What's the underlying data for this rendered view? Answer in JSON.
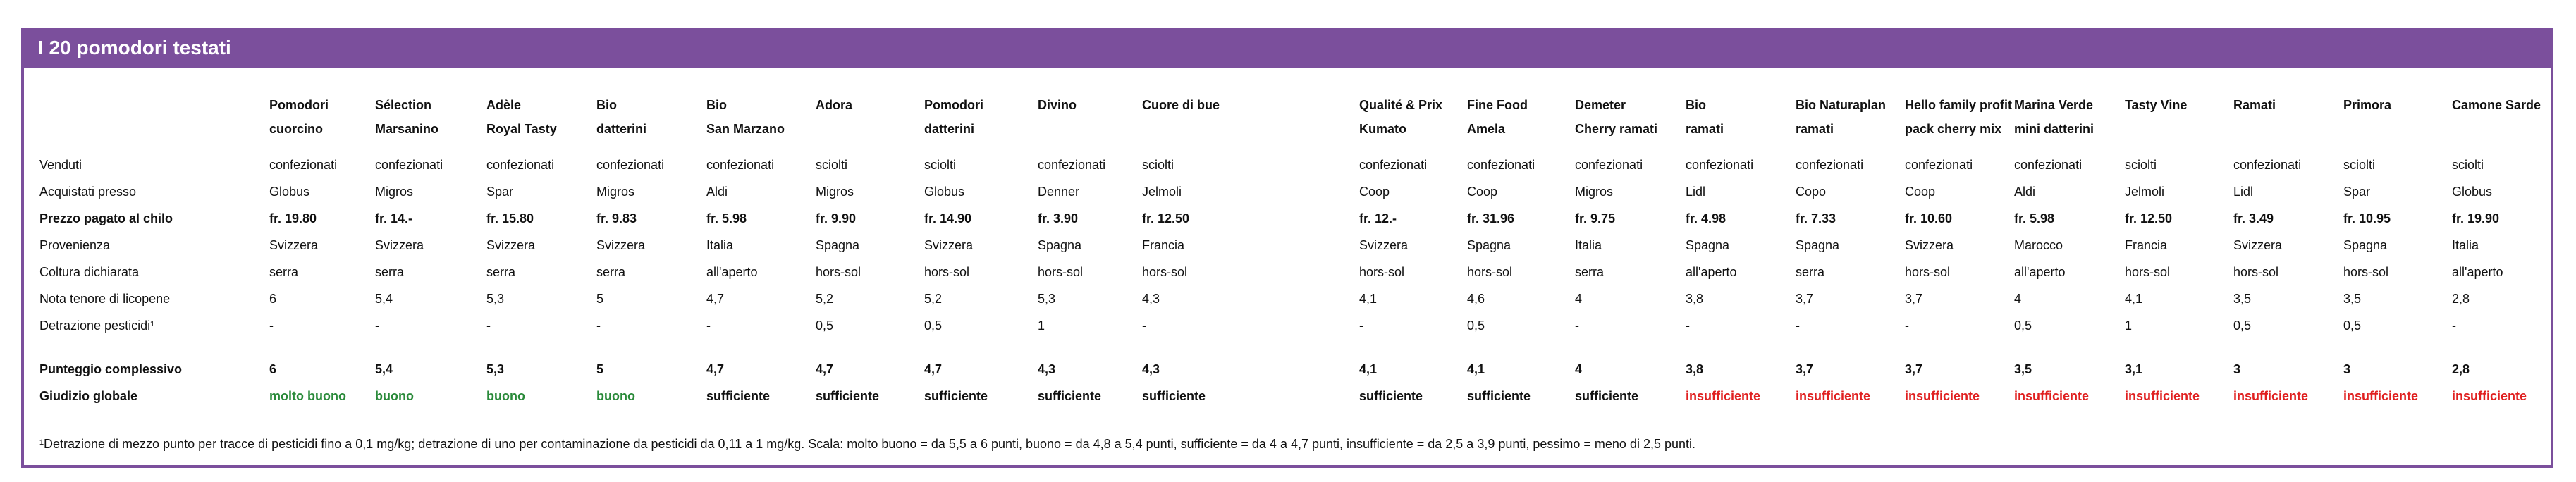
{
  "title": "I 20 pomodori testati",
  "colors": {
    "header_bg": "#7b4f9c",
    "green": "#2a8a3a",
    "red": "#e02020",
    "black": "#111111"
  },
  "columns": [
    {
      "line1": "Pomodori",
      "line2": "cuorcino"
    },
    {
      "line1": "Sélection",
      "line2": "Marsanino"
    },
    {
      "line1": "Adèle",
      "line2": "Royal Tasty"
    },
    {
      "line1": "Bio",
      "line2": "datterini"
    },
    {
      "line1": "Bio",
      "line2": "San Marzano"
    },
    {
      "line1": "Adora",
      "line2": ""
    },
    {
      "line1": "Pomodori",
      "line2": "datterini"
    },
    {
      "line1": "Divino",
      "line2": ""
    },
    {
      "line1": "Cuore di bue",
      "line2": ""
    },
    {
      "line1": "Qualité & Prix",
      "line2": "Kumato"
    },
    {
      "line1": "Fine Food",
      "line2": "Amela"
    },
    {
      "line1": "Demeter",
      "line2": "Cherry ramati"
    },
    {
      "line1": "Bio",
      "line2": "ramati"
    },
    {
      "line1": "Bio Naturaplan",
      "line2": "ramati"
    },
    {
      "line1": "Hello family profit",
      "line2": "pack cherry mix"
    },
    {
      "line1": "Marina Verde",
      "line2": "mini datterini"
    },
    {
      "line1": "Tasty Vine",
      "line2": ""
    },
    {
      "line1": "Ramati",
      "line2": ""
    },
    {
      "line1": "Primora",
      "line2": ""
    },
    {
      "line1": "Camone Sarde",
      "line2": ""
    }
  ],
  "rows": [
    {
      "label": "Venduti",
      "bold": false,
      "values": [
        "confezionati",
        "confezionati",
        "confezionati",
        "confezionati",
        "confezionati",
        "sciolti",
        "sciolti",
        "confezionati",
        "sciolti",
        "confezionati",
        "confezionati",
        "confezionati",
        "confezionati",
        "confezionati",
        "confezionati",
        "confezionati",
        "sciolti",
        "confezionati",
        "sciolti",
        "sciolti"
      ]
    },
    {
      "label": "Acquistati presso",
      "bold": false,
      "values": [
        "Globus",
        "Migros",
        "Spar",
        "Migros",
        "Aldi",
        "Migros",
        "Globus",
        "Denner",
        "Jelmoli",
        "Coop",
        "Coop",
        "Migros",
        "Lidl",
        "Copo",
        "Coop",
        "Aldi",
        "Jelmoli",
        "Lidl",
        "Spar",
        "Globus"
      ]
    },
    {
      "label": "Prezzo pagato al chilo",
      "bold": true,
      "values": [
        "fr. 19.80",
        "fr. 14.-",
        "fr. 15.80",
        "fr. 9.83",
        "fr. 5.98",
        "fr. 9.90",
        "fr. 14.90",
        "fr. 3.90",
        "fr. 12.50",
        "fr. 12.-",
        "fr. 31.96",
        "fr. 9.75",
        "fr. 4.98",
        "fr. 7.33",
        "fr. 10.60",
        "fr. 5.98",
        "fr. 12.50",
        "fr. 3.49",
        "fr. 10.95",
        "fr. 19.90"
      ]
    },
    {
      "label": "Provenienza",
      "bold": false,
      "values": [
        "Svizzera",
        "Svizzera",
        "Svizzera",
        "Svizzera",
        "Italia",
        "Spagna",
        "Svizzera",
        "Spagna",
        "Francia",
        "Svizzera",
        "Spagna",
        "Italia",
        "Spagna",
        "Spagna",
        "Svizzera",
        "Marocco",
        "Francia",
        "Svizzera",
        "Spagna",
        "Italia"
      ]
    },
    {
      "label": "Coltura dichiarata",
      "bold": false,
      "values": [
        "serra",
        "serra",
        "serra",
        "serra",
        "all'aperto",
        "hors-sol",
        "hors-sol",
        "hors-sol",
        "hors-sol",
        "hors-sol",
        "hors-sol",
        "serra",
        "all'aperto",
        "serra",
        "hors-sol",
        "all'aperto",
        "hors-sol",
        "hors-sol",
        "hors-sol",
        "all'aperto"
      ]
    },
    {
      "label": "Nota tenore di licopene",
      "bold": false,
      "values": [
        "6",
        "5,4",
        "5,3",
        "5",
        "4,7",
        "5,2",
        "5,2",
        "5,3",
        "4,3",
        "4,1",
        "4,6",
        "4",
        "3,8",
        "3,7",
        "3,7",
        "4",
        "4,1",
        "3,5",
        "3,5",
        "2,8"
      ]
    },
    {
      "label": "Detrazione pesticidi¹",
      "bold": false,
      "values": [
        "-",
        "-",
        "-",
        "-",
        "-",
        "0,5",
        "0,5",
        "1",
        "-",
        "-",
        "0,5",
        "-",
        "-",
        "-",
        "-",
        "0,5",
        "1",
        "0,5",
        "0,5",
        "-"
      ]
    }
  ],
  "score_row": {
    "label": "Punteggio complessivo",
    "values": [
      "6",
      "5,4",
      "5,3",
      "5",
      "4,7",
      "4,7",
      "4,7",
      "4,3",
      "4,3",
      "4,1",
      "4,1",
      "4",
      "3,8",
      "3,7",
      "3,7",
      "3,5",
      "3,1",
      "3",
      "3",
      "2,8"
    ]
  },
  "judgement_row": {
    "label": "Giudizio globale",
    "values": [
      "molto buono",
      "buono",
      "buono",
      "buono",
      "sufficiente",
      "sufficiente",
      "sufficiente",
      "sufficiente",
      "sufficiente",
      "sufficiente",
      "sufficiente",
      "sufficiente",
      "insufficiente",
      "insufficiente",
      "insufficiente",
      "insufficiente",
      "insufficiente",
      "insufficiente",
      "insufficiente",
      "insufficiente"
    ],
    "tones": [
      "green",
      "green",
      "green",
      "green",
      "black",
      "black",
      "black",
      "black",
      "black",
      "black",
      "black",
      "black",
      "red",
      "red",
      "red",
      "red",
      "red",
      "red",
      "red",
      "red"
    ]
  },
  "footnote": "¹Detrazione di mezzo punto per tracce di pesticidi fino a 0,1 mg/kg; detrazione di uno per contaminazione da pesticidi da 0,11 a 1 mg/kg. Scala: molto buono = da 5,5 a 6 punti, buono = da 4,8 a 5,4 punti, sufficiente =          da 4 a 4,7 punti, insufficiente = da 2,5 a 3,9 punti, pessimo = meno di 2,5 punti."
}
